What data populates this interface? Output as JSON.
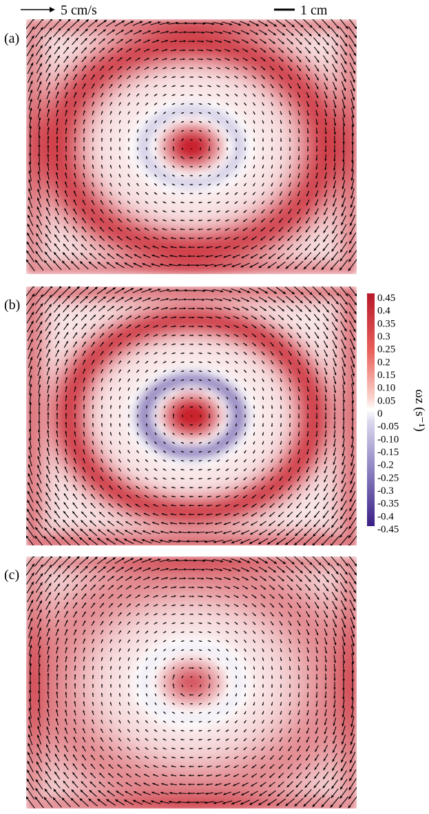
{
  "legend": {
    "velocity_scale": "5 cm/s",
    "length_scale": "1 cm"
  },
  "panels": [
    {
      "label": "(a)",
      "vortex": {
        "core_strength": 0.45,
        "ring_strength": 0.32,
        "ring_radius": 0.4,
        "ring_width": 0.08,
        "neg_ring": 0.17,
        "corner": 0.2
      }
    },
    {
      "label": "(b)",
      "vortex": {
        "core_strength": 0.48,
        "ring_strength": 0.33,
        "ring_radius": 0.37,
        "ring_width": 0.06,
        "neg_ring": 0.32,
        "corner": 0.24
      }
    },
    {
      "label": "(c)",
      "vortex": {
        "core_strength": 0.3,
        "ring_strength": 0.18,
        "ring_radius": 0.42,
        "ring_width": 0.12,
        "neg_ring": 0.1,
        "corner": 0.18
      }
    }
  ],
  "colorbar": {
    "title": "ωz (s⁻¹)",
    "ticks": [
      "0.45",
      "0.4",
      "0.35",
      "0.3",
      "0.25",
      "0.2",
      "0.15",
      "0.10",
      "0.05",
      "0",
      "-0.05",
      "-0.10",
      "-0.15",
      "-0.2",
      "-0.25",
      "-0.3",
      "-0.35",
      "-0.4",
      "-0.45"
    ],
    "range": [
      -0.45,
      0.45
    ],
    "colors": {
      "positive": "#c8202c",
      "zero": "#ffffff",
      "negative": "#3b1f8c"
    }
  }
}
